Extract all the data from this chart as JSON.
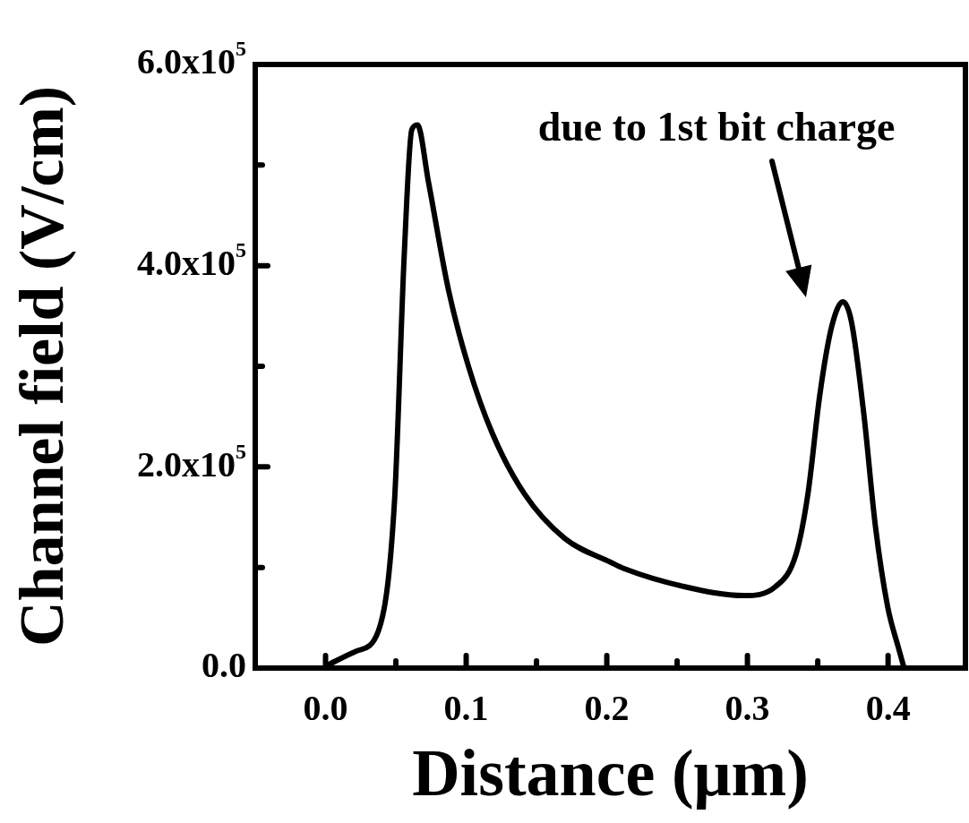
{
  "chart_data": {
    "type": "line",
    "xlabel": "Distance (μm)",
    "ylabel": "Channel field (V/cm)",
    "x": [
      0.0,
      0.022,
      0.0376,
      0.049,
      0.056,
      0.0613,
      0.0653,
      0.0732,
      0.0874,
      0.1016,
      0.1187,
      0.1415,
      0.17,
      0.203,
      0.212,
      0.255,
      0.2975,
      0.32,
      0.3345,
      0.343,
      0.3515,
      0.36,
      0.368,
      0.374,
      0.3828,
      0.391,
      0.3997,
      0.407,
      0.411
    ],
    "series": [
      {
        "color": "#000000",
        "values": [
          2000,
          17000,
          37000,
          165000,
          412000,
          535000,
          540000,
          483000,
          376000,
          300000,
          233000,
          173000,
          129000,
          105000,
          99000,
          81000,
          72000,
          81000,
          113000,
          173000,
          272000,
          340000,
          364000,
          344000,
          252000,
          141000,
          61000,
          22000,
          2000
        ]
      }
    ],
    "xlim": [
      -0.05,
      0.455
    ],
    "xticks": [
      {
        "value": 0,
        "label": "0.0"
      },
      {
        "value": 0.05,
        "label": null
      },
      0.1,
      {
        "value": 0.15,
        "label": null
      },
      0.2,
      {
        "value": 0.25,
        "label": null
      },
      0.3,
      {
        "value": 0.35,
        "label": null
      },
      0.4
    ],
    "ylim": [
      0,
      600000
    ],
    "yticks": [
      {
        "value": 0,
        "label": "0.0"
      },
      {
        "value": 100000,
        "label": null
      },
      {
        "value": 200000,
        "label": "2.0x10$^{5}$"
      },
      {
        "value": 300000,
        "label": null
      },
      {
        "value": 400000,
        "label": "4.0x10$^{5}$"
      },
      {
        "value": 500000,
        "label": null
      },
      {
        "value": 600000,
        "label": "6.0x10$^{5}$"
      }
    ],
    "annotations": [
      "due to 1st bit charge"
    ]
  }
}
